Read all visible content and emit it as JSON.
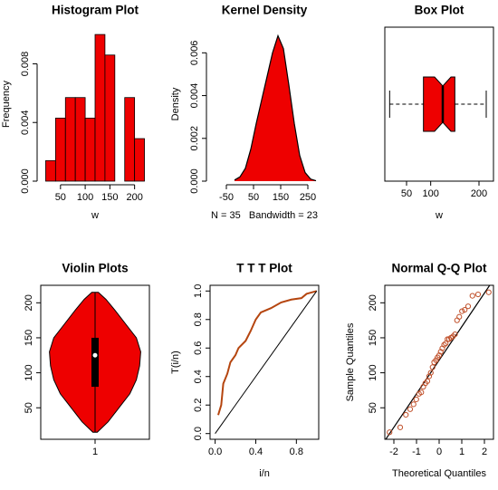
{
  "chart_data": [
    {
      "type": "histogram",
      "title": "Histogram Plot",
      "xlabel": "w",
      "ylabel": "Frequency",
      "bins": [
        20,
        40,
        60,
        80,
        100,
        120,
        140,
        160,
        180,
        200,
        220
      ],
      "values": [
        0.0014,
        0.0043,
        0.0057,
        0.0057,
        0.0043,
        0.01,
        0.0086,
        0.0,
        0.0057,
        0.0029
      ],
      "color": "#ee0000",
      "xlim": [
        10,
        230
      ],
      "ylim": [
        0,
        0.0105
      ],
      "xticks": [
        50,
        100,
        150,
        200
      ],
      "yticks": [
        {
          "value": 0,
          "label": "0.000"
        },
        {
          "value": 0.004,
          "label": "0.004"
        },
        {
          "value": 0.008,
          "label": "0.008"
        }
      ],
      "box": false
    },
    {
      "type": "density",
      "title": "Kernel Density",
      "xlabel": "N = 35   Bandwidth = 23",
      "ylabel": "Density",
      "x": [
        -20,
        0,
        20,
        40,
        60,
        80,
        100,
        120,
        140,
        160,
        180,
        200,
        220,
        240,
        260,
        280
      ],
      "values": [
        5e-05,
        0.0002,
        0.0006,
        0.0015,
        0.0027,
        0.0038,
        0.0049,
        0.006,
        0.0068,
        0.0062,
        0.0045,
        0.0027,
        0.0012,
        0.0004,
        0.0001,
        2e-05
      ],
      "color": "#ee0000",
      "xlim": [
        -110,
        290
      ],
      "ylim": [
        0,
        0.0072
      ],
      "xticks": [
        -50,
        50,
        150,
        250
      ],
      "yticks": [
        {
          "value": 0,
          "label": "0.000"
        },
        {
          "value": 0.002,
          "label": "0.002"
        },
        {
          "value": 0.004,
          "label": "0.004"
        },
        {
          "value": 0.006,
          "label": "0.006"
        }
      ],
      "box": false
    },
    {
      "type": "boxplot",
      "title": "Box Plot",
      "xlabel": "w",
      "min": 15,
      "q1": 85,
      "median": 125,
      "q3": 150,
      "max": 215,
      "notch": [
        108,
        142
      ],
      "color": "#ee0000",
      "xlim": [
        5,
        230
      ],
      "xticks": [
        50,
        100,
        200
      ],
      "box": true
    },
    {
      "type": "violin",
      "title": "Violin Plots",
      "min": 15,
      "q1": 80,
      "median": 125,
      "q3": 150,
      "max": 215,
      "violin_y": [
        15,
        30,
        50,
        70,
        90,
        110,
        130,
        150,
        170,
        190,
        205,
        215
      ],
      "violin_width": [
        0.02,
        0.12,
        0.22,
        0.32,
        0.38,
        0.41,
        0.42,
        0.38,
        0.28,
        0.18,
        0.1,
        0.03
      ],
      "color": "#ee0000",
      "xlim": [
        0.5,
        1.5
      ],
      "ylim": [
        5,
        225
      ],
      "xticks": [
        1
      ],
      "yticks": [
        50,
        100,
        150,
        200
      ],
      "box": true
    },
    {
      "type": "line",
      "title": "T T T Plot",
      "xlabel": "i/n",
      "ylabel": "T(i/n)",
      "series": [
        {
          "color": "#b5450f",
          "x": [
            0.03,
            0.06,
            0.08,
            0.12,
            0.15,
            0.2,
            0.23,
            0.3,
            0.35,
            0.4,
            0.45,
            0.55,
            0.65,
            0.75,
            0.85,
            0.9,
            1.0
          ],
          "values": [
            0.13,
            0.2,
            0.35,
            0.42,
            0.5,
            0.55,
            0.6,
            0.65,
            0.72,
            0.8,
            0.85,
            0.88,
            0.92,
            0.94,
            0.95,
            0.98,
            1.0
          ]
        },
        {
          "color": "#000000",
          "x": [
            0,
            1
          ],
          "values": [
            0,
            1
          ]
        }
      ],
      "xlim": [
        -0.05,
        1.02
      ],
      "ylim": [
        -0.04,
        1.04
      ],
      "xticks": [
        {
          "value": 0,
          "label": "0.0"
        },
        {
          "value": 0.4,
          "label": "0.4"
        },
        {
          "value": 0.8,
          "label": "0.8"
        }
      ],
      "yticks": [
        {
          "value": 0,
          "label": "0.0"
        },
        {
          "value": 0.2,
          "label": "0.2"
        },
        {
          "value": 0.4,
          "label": "0.4"
        },
        {
          "value": 0.6,
          "label": "0.6"
        },
        {
          "value": 0.8,
          "label": "0.8"
        },
        {
          "value": 1,
          "label": "1.0"
        }
      ],
      "box": true
    },
    {
      "type": "scatter",
      "title": "Normal Q-Q Plot",
      "xlabel": "Theoretical Quantiles",
      "ylabel": "Sample Quantiles",
      "x": [
        -2.19,
        -1.72,
        -1.47,
        -1.28,
        -1.13,
        -1.01,
        -0.89,
        -0.79,
        -0.7,
        -0.61,
        -0.52,
        -0.44,
        -0.37,
        -0.29,
        -0.22,
        -0.14,
        -0.07,
        0,
        0.07,
        0.14,
        0.22,
        0.29,
        0.37,
        0.44,
        0.52,
        0.61,
        0.7,
        0.79,
        0.89,
        1.01,
        1.13,
        1.28,
        1.47,
        1.72,
        2.19
      ],
      "values": [
        15,
        22,
        40,
        48,
        55,
        62,
        70,
        72,
        80,
        85,
        88,
        95,
        100,
        108,
        115,
        118,
        122,
        125,
        130,
        135,
        140,
        142,
        148,
        148,
        150,
        152,
        155,
        175,
        180,
        188,
        190,
        195,
        210,
        212,
        215
      ],
      "color": "#c0502a",
      "line": {
        "x": [
          -2.4,
          2.4
        ],
        "values": [
          3,
          233
        ],
        "color": "#000000"
      },
      "xlim": [
        -2.4,
        2.4
      ],
      "ylim": [
        5,
        225
      ],
      "xticks": [
        -2,
        -1,
        0,
        1,
        2
      ],
      "yticks": [
        50,
        100,
        150,
        200
      ],
      "box": true
    }
  ]
}
